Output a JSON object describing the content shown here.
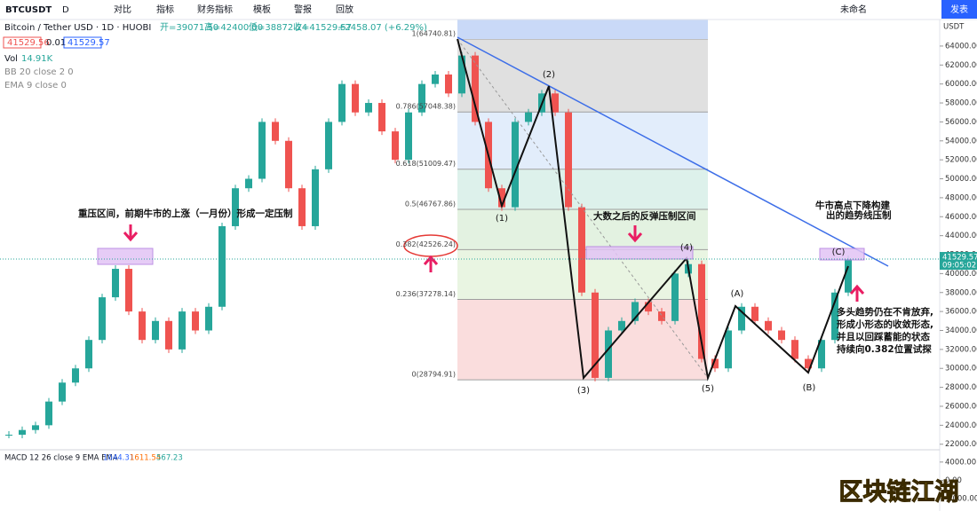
{
  "toolbar": {
    "symbol": "BTCUSDT",
    "interval": "D",
    "buttons": [
      "对比",
      "指标",
      "财务指标",
      "模板",
      "警报",
      "回放"
    ],
    "layout_name": "未命名",
    "publish": "发表"
  },
  "legend": {
    "title": "Bitcoin / Tether USD · 1D · HUOBI",
    "ohlc": [
      "开=39071.50",
      "高=42400.00",
      "低=38872.24",
      "收=41529.57",
      "+2458.07 (+6.29%)"
    ],
    "bid": 41529.56,
    "spread": 0.01,
    "ask": 41529.57,
    "volume_name": "Vol",
    "volume": "14.91K",
    "indicators": [
      "BB 20 close 2 0",
      "EMA 9 close 0"
    ]
  },
  "chart_data": {
    "type": "candlestick",
    "closes": [
      23000,
      23500,
      24000,
      26500,
      28500,
      30000,
      33000,
      37500,
      40500,
      36000,
      33000,
      35000,
      32000,
      36000,
      34000,
      36500,
      45000,
      49000,
      50000,
      56000,
      54000,
      49000,
      45000,
      51000,
      56000,
      60000,
      57000,
      58000,
      55000,
      52000,
      57000,
      60000,
      61000,
      59000,
      63000,
      56000,
      49000,
      47000,
      56000,
      57000,
      59000,
      57000,
      47000,
      38000,
      29000,
      34000,
      35000,
      37000,
      36000,
      35000,
      40000,
      41000,
      31000,
      30000,
      34000,
      36500,
      35000,
      34000,
      33000,
      31000,
      30000,
      33000,
      38000,
      41529.57
    ],
    "up_color": "#26a69a",
    "down_color": "#ef5350",
    "ylim": [
      21600,
      66800
    ],
    "yticks": [
      {
        "value": 22000,
        "label": "22000.00"
      },
      {
        "value": 24000,
        "label": "24000.00"
      },
      {
        "value": 26000,
        "label": "26000.00"
      },
      {
        "value": 28000,
        "label": "28000.00"
      },
      {
        "value": 30000,
        "label": "30000.00"
      },
      {
        "value": 32000,
        "label": "32000.00"
      },
      {
        "value": 34000,
        "label": "34000.00"
      },
      {
        "value": 36000,
        "label": "36000.00"
      },
      {
        "value": 38000,
        "label": "38000.00"
      },
      {
        "value": 40000,
        "label": "40000.00"
      },
      {
        "value": 42000,
        "label": "42000.00"
      },
      {
        "value": 44000,
        "label": "44000.00"
      },
      {
        "value": 46000,
        "label": "46000.00"
      },
      {
        "value": 48000,
        "label": "48000.00"
      },
      {
        "value": 50000,
        "label": "50000.00"
      },
      {
        "value": 52000,
        "label": "52000.00"
      },
      {
        "value": 54000,
        "label": "54000.00"
      },
      {
        "value": 56000,
        "label": "56000.00"
      },
      {
        "value": 58000,
        "label": "58000.00"
      },
      {
        "value": 60000,
        "label": "60000.00"
      },
      {
        "value": 62000,
        "label": "62000.00"
      },
      {
        "value": 64000,
        "label": "64000.00"
      }
    ],
    "currency": "USDT",
    "last_price": 41529.57,
    "countdown": "09:05:02",
    "fib_levels": [
      {
        "label": "1(64740.81)",
        "price": 64740.81,
        "color": "#d8d8d8"
      },
      {
        "label": "0.786(57048.38)",
        "price": 57048.38,
        "color": "#dbe9fa"
      },
      {
        "label": "0.618(51009.47)",
        "price": 51009.47,
        "color": "#d4ede6"
      },
      {
        "label": "0.5(46767.86)",
        "price": 46767.86,
        "color": "#dcefd9"
      },
      {
        "label": "0.382(42526.24)",
        "price": 42526.24,
        "color": "#e3f2db"
      },
      {
        "label": "0.236(37278.14)",
        "price": 37278.14,
        "color": "#f9d4d4"
      },
      {
        "label": "0(28794.91)",
        "price": 28794.91,
        "color": "#f9d4d4"
      }
    ]
  },
  "macd": {
    "label": "MACD 12 26 close 9 EMA EMA",
    "values": [
      1044.31,
      1611.54,
      567.23
    ],
    "ylim": [
      -6700,
      6100
    ],
    "yticks": [
      {
        "value": 4000,
        "label": "4000.00"
      },
      {
        "value": 0,
        "label": "0.00"
      },
      {
        "value": -4000,
        "label": "-4000.00"
      }
    ]
  },
  "annotations": {
    "resistance": "重压区间，前期牛市的上涨（一月份）形成一定压制",
    "rebound": "大数之后的反弹压制区间",
    "trendline": [
      "牛市高点下降构建",
      "出的趋势线压制"
    ],
    "outlook": [
      "多头趋势仍在不肯放弃,",
      "形成小形态的收敛形态,",
      "并且以回踩蓄能的状态",
      "持续向0.382位置试探"
    ]
  },
  "waves": [
    "(1)",
    "(2)",
    "(3)",
    "(4)",
    "(5)",
    "(A)",
    "(B)",
    "(C)"
  ],
  "watermark": "区块链江湖"
}
